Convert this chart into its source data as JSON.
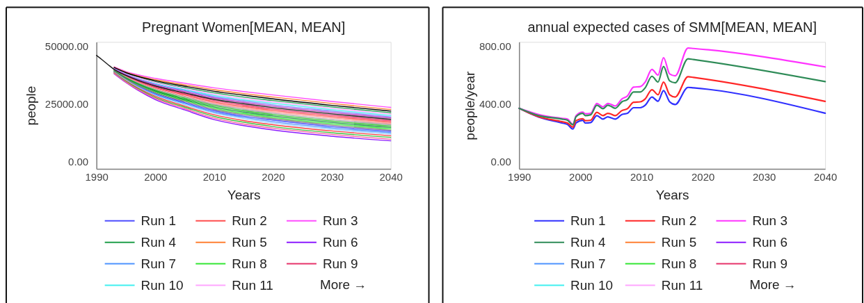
{
  "chart_data": [
    {
      "type": "line",
      "title": "Pregnant Women[MEAN, MEAN]",
      "xlabel": "Years",
      "ylabel": "people",
      "x": [
        1990,
        1991,
        1992,
        1993,
        1995,
        1997,
        2000,
        2005,
        2010,
        2015,
        2020,
        2030,
        2040
      ],
      "xlim": [
        1990,
        2040
      ],
      "xticks": [
        1990,
        2000,
        2010,
        2020,
        2030,
        2040
      ],
      "ylim": [
        -3250,
        51800
      ],
      "yticks": [
        {
          "value": 0,
          "label": "0.00"
        },
        {
          "value": 25000,
          "label": "25000.00"
        },
        {
          "value": 50000,
          "label": "50000.00"
        }
      ],
      "legend": "bottom",
      "annotations": [
        "More →"
      ],
      "series": [
        {
          "name": "Run 1",
          "color": "#4d4dff",
          "values": [
            null,
            null,
            null,
            38800,
            35500,
            32800,
            29400,
            25500,
            22000,
            19600,
            17900,
            15100,
            13000
          ]
        },
        {
          "name": "Run 2",
          "color": "#ff4d4d",
          "values": [
            null,
            null,
            null,
            39700,
            36900,
            34700,
            32000,
            28800,
            25800,
            23800,
            22100,
            19400,
            17000
          ]
        },
        {
          "name": "Run 3",
          "color": "#ff4dff",
          "values": [
            null,
            null,
            null,
            41000,
            39000,
            37600,
            36000,
            33900,
            31900,
            30300,
            28800,
            26000,
            23400
          ]
        },
        {
          "name": "Run 4",
          "color": "#1f9e4a",
          "values": [
            null,
            null,
            null,
            40500,
            38200,
            36500,
            34500,
            32000,
            29700,
            27900,
            26400,
            23600,
            21100
          ]
        },
        {
          "name": "Run 5",
          "color": "#ff8033",
          "values": [
            null,
            null,
            null,
            40800,
            38700,
            37200,
            35400,
            33200,
            31100,
            29400,
            27900,
            25100,
            22500
          ]
        },
        {
          "name": "Run 6",
          "color": "#8c1aff",
          "values": [
            null,
            null,
            null,
            38000,
            34200,
            30900,
            26800,
            22300,
            18100,
            15500,
            13600,
            10900,
            8900
          ]
        },
        {
          "name": "Run 7",
          "color": "#4d94ff",
          "values": [
            null,
            null,
            null,
            38700,
            35400,
            32500,
            29000,
            25100,
            21400,
            19100,
            17200,
            14500,
            12400
          ]
        },
        {
          "name": "Run 8",
          "color": "#33e633",
          "values": [
            null,
            null,
            null,
            39100,
            35900,
            33300,
            30100,
            26500,
            23100,
            20800,
            19100,
            16300,
            14100
          ]
        },
        {
          "name": "Run 9",
          "color": "#e6336b",
          "values": [
            null,
            null,
            null,
            39800,
            37100,
            34900,
            32300,
            29300,
            26400,
            24400,
            22700,
            20000,
            17600
          ]
        },
        {
          "name": "Run 10",
          "color": "#40f0f0",
          "values": [
            null,
            null,
            null,
            40300,
            37800,
            36000,
            33800,
            31100,
            28600,
            26700,
            25200,
            22400,
            19900
          ]
        },
        {
          "name": "Run 11",
          "color": "#ffa6ff",
          "values": [
            null,
            null,
            null,
            40400,
            38000,
            36300,
            34200,
            31600,
            29100,
            27300,
            25800,
            23000,
            20500
          ]
        },
        {
          "color": "#000000",
          "values": [
            null,
            null,
            null,
            40700,
            38500,
            36900,
            35000,
            32600,
            30400,
            28700,
            27100,
            24300,
            21800
          ]
        },
        {
          "color": "#8080ff",
          "values": [
            null,
            null,
            null,
            40200,
            37700,
            35700,
            33400,
            30700,
            28000,
            26200,
            24500,
            21800,
            19300
          ]
        },
        {
          "color": "#c040c0",
          "values": [
            null,
            null,
            null,
            40000,
            37500,
            35500,
            33100,
            30200,
            27500,
            25600,
            23900,
            21200,
            18800
          ]
        },
        {
          "color": "#ff9090",
          "values": [
            null,
            null,
            null,
            39600,
            36700,
            34400,
            31600,
            28300,
            25300,
            23200,
            21500,
            18800,
            16400
          ]
        },
        {
          "color": "#a0a0a0",
          "values": [
            null,
            null,
            null,
            39400,
            36500,
            34100,
            31200,
            27900,
            24700,
            22600,
            20900,
            18100,
            15900
          ]
        },
        {
          "color": "#30c030",
          "values": [
            null,
            null,
            null,
            39300,
            36300,
            33800,
            30800,
            27400,
            24200,
            22000,
            20300,
            17500,
            15300
          ]
        },
        {
          "color": "#1a9641",
          "values": [
            null,
            null,
            null,
            39200,
            36100,
            33600,
            30500,
            26900,
            23600,
            21400,
            19700,
            16900,
            14700
          ]
        },
        {
          "color": "#808080",
          "values": [
            null,
            null,
            null,
            39000,
            35700,
            33000,
            29700,
            26000,
            22500,
            20200,
            18500,
            15700,
            13500
          ]
        },
        {
          "color": "#a0d0ff",
          "values": [
            null,
            null,
            null,
            38600,
            35200,
            32200,
            28600,
            24600,
            20900,
            18500,
            16600,
            13900,
            11800
          ]
        },
        {
          "color": "#ff4040",
          "values": [
            null,
            null,
            null,
            38500,
            34900,
            31900,
            28200,
            24000,
            20200,
            17700,
            15900,
            13200,
            11100
          ]
        },
        {
          "color": "#40c040",
          "values": [
            null,
            null,
            null,
            38300,
            34700,
            31600,
            27700,
            23500,
            19500,
            17000,
            15100,
            12400,
            10400
          ]
        },
        {
          "color": "#ff60a0",
          "values": [
            null,
            null,
            null,
            38200,
            34400,
            31200,
            27300,
            22900,
            18800,
            16200,
            14400,
            11700,
            9600
          ]
        },
        {
          "color": "#1a1a1a",
          "values": [
            46000,
            44000,
            41900,
            39900,
            37300,
            35200,
            32700,
            29700,
            26900,
            25000,
            23300,
            20600,
            18200
          ]
        }
      ]
    },
    {
      "type": "line",
      "title": "annual expected cases of SMM[MEAN, MEAN]",
      "xlabel": "Years",
      "ylabel": "people/year",
      "x": [
        1990,
        1993.2,
        1997,
        1997.9,
        1998.8,
        1999.3,
        2000.4,
        2000.8,
        2001.7,
        2002.7,
        2003.7,
        2004.5,
        2004.9,
        2005.7,
        2006.8,
        2007.7,
        2008.7,
        2009.8,
        2010.6,
        2011.7,
        2012.7,
        2013.6,
        2014.6,
        2015.5,
        2017.6,
        2018.5,
        2040
      ],
      "xlim": [
        1990,
        2040
      ],
      "xticks": [
        1990,
        2000,
        2010,
        2020,
        2030,
        2040
      ],
      "ylim": [
        -50,
        830
      ],
      "yticks": [
        {
          "value": 0,
          "label": "0.00"
        },
        {
          "value": 400,
          "label": "400.00"
        },
        {
          "value": 800,
          "label": "800.00"
        }
      ],
      "legend": "bottom",
      "annotations": [
        "More →"
      ],
      "series": [
        {
          "name": "Run 1",
          "color": "#3030ff",
          "values": [
            370,
            309,
            268,
            258,
            226,
            268,
            287,
            268,
            271,
            319,
            295,
            311,
            306,
            295,
            327,
            335,
            374,
            374,
            391,
            448,
            419,
            493,
            415,
            396,
            515,
            512,
            336
          ]
        },
        {
          "name": "Run 2",
          "color": "#ff2626",
          "values": [
            370,
            311,
            277,
            268,
            239,
            284,
            298,
            284,
            287,
            342,
            319,
            335,
            332,
            319,
            354,
            367,
            412,
            415,
            435,
            499,
            464,
            552,
            464,
            448,
            589,
            584,
            418
          ]
        },
        {
          "name": "Run 3",
          "color": "#ff33ff",
          "values": [
            370,
            327,
            300,
            295,
            258,
            319,
            343,
            332,
            335,
            403,
            380,
            403,
            399,
            386,
            435,
            456,
            517,
            520,
            552,
            640,
            600,
            721,
            608,
            595,
            788,
            785,
            657
          ]
        },
        {
          "name": "Run 4",
          "color": "#2e8b57",
          "values": [
            370,
            319,
            295,
            287,
            255,
            311,
            335,
            319,
            325,
            391,
            367,
            391,
            386,
            370,
            415,
            431,
            483,
            483,
            512,
            592,
            552,
            660,
            560,
            547,
            713,
            708,
            555
          ]
        },
        {
          "name": "Run 5",
          "color": "#ff8033",
          "values": [
            null,
            null,
            null,
            null,
            null,
            null,
            null,
            null,
            null,
            null,
            null,
            null,
            null,
            null,
            null,
            null,
            null,
            null,
            null,
            null,
            null,
            null,
            null,
            null,
            null,
            null,
            null
          ]
        },
        {
          "name": "Run 6",
          "color": "#8c1aff",
          "values": [
            null,
            null,
            null,
            null,
            null,
            null,
            null,
            null,
            null,
            null,
            null,
            null,
            null,
            null,
            null,
            null,
            null,
            null,
            null,
            null,
            null,
            null,
            null,
            null,
            null,
            null,
            null
          ]
        },
        {
          "name": "Run 7",
          "color": "#4d94ff",
          "values": [
            null,
            null,
            null,
            null,
            null,
            null,
            null,
            null,
            null,
            null,
            null,
            null,
            null,
            null,
            null,
            null,
            null,
            null,
            null,
            null,
            null,
            null,
            null,
            null,
            null,
            null,
            null
          ]
        },
        {
          "name": "Run 8",
          "color": "#33e633",
          "values": [
            null,
            null,
            null,
            null,
            null,
            null,
            null,
            null,
            null,
            null,
            null,
            null,
            null,
            null,
            null,
            null,
            null,
            null,
            null,
            null,
            null,
            null,
            null,
            null,
            null,
            null,
            null
          ]
        },
        {
          "name": "Run 9",
          "color": "#e6336b",
          "values": [
            null,
            null,
            null,
            null,
            null,
            null,
            null,
            null,
            null,
            null,
            null,
            null,
            null,
            null,
            null,
            null,
            null,
            null,
            null,
            null,
            null,
            null,
            null,
            null,
            null,
            null,
            null
          ]
        },
        {
          "name": "Run 10",
          "color": "#40f0f0",
          "values": [
            null,
            null,
            null,
            null,
            null,
            null,
            null,
            null,
            null,
            null,
            null,
            null,
            null,
            null,
            null,
            null,
            null,
            null,
            null,
            null,
            null,
            null,
            null,
            null,
            null,
            null,
            null
          ]
        },
        {
          "name": "Run 11",
          "color": "#ffa6ff",
          "values": [
            null,
            null,
            null,
            null,
            null,
            null,
            null,
            null,
            null,
            null,
            null,
            null,
            null,
            null,
            null,
            null,
            null,
            null,
            null,
            null,
            null,
            null,
            null,
            null,
            null,
            null,
            null
          ]
        }
      ]
    }
  ]
}
